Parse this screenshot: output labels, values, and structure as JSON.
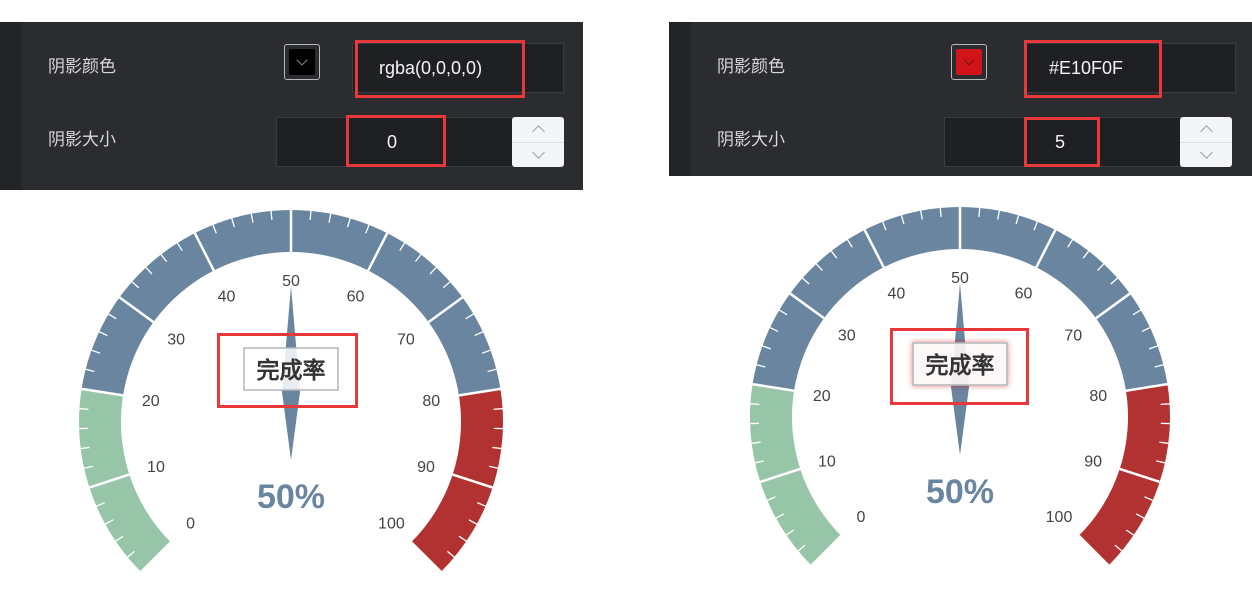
{
  "left_panel": {
    "shadow_color_label": "阴影颜色",
    "shadow_color_value": "rgba(0,0,0,0)",
    "swatch_color": "#000000",
    "shadow_size_label": "阴影大小",
    "shadow_size_value": "0"
  },
  "right_panel": {
    "shadow_color_label": "阴影颜色",
    "shadow_color_value": "#E10F0F",
    "swatch_color": "#d1141a",
    "shadow_size_label": "阴影大小",
    "shadow_size_value": "5"
  },
  "chart_data": [
    {
      "type": "gauge",
      "title": "完成率",
      "value": 50,
      "value_label": "50%",
      "min": 0,
      "max": 100,
      "ticks": [
        "0",
        "10",
        "20",
        "30",
        "40",
        "50",
        "60",
        "70",
        "80",
        "90",
        "100"
      ],
      "bands": [
        {
          "from": 0,
          "to": 20,
          "color": "#96c6a7"
        },
        {
          "from": 20,
          "to": 80,
          "color": "#6a859f"
        },
        {
          "from": 80,
          "to": 100,
          "color": "#b23231"
        }
      ],
      "title_shadow": "none"
    },
    {
      "type": "gauge",
      "title": "完成率",
      "value": 50,
      "value_label": "50%",
      "min": 0,
      "max": 100,
      "ticks": [
        "0",
        "10",
        "20",
        "30",
        "40",
        "50",
        "60",
        "70",
        "80",
        "90",
        "100"
      ],
      "bands": [
        {
          "from": 0,
          "to": 20,
          "color": "#96c6a7"
        },
        {
          "from": 20,
          "to": 80,
          "color": "#6a859f"
        },
        {
          "from": 80,
          "to": 100,
          "color": "#b23231"
        }
      ],
      "title_shadow": "#E10F0F"
    }
  ]
}
